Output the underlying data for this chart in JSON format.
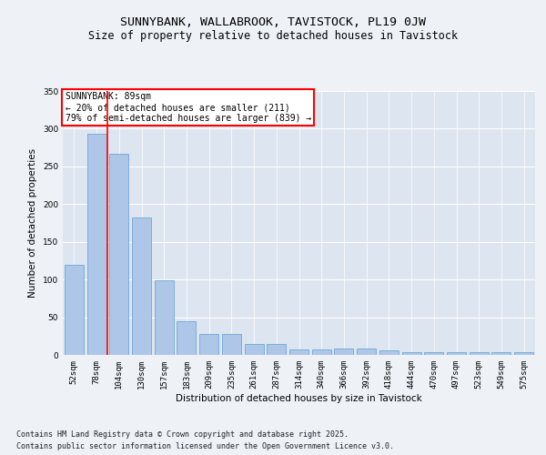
{
  "title1": "SUNNYBANK, WALLABROOK, TAVISTOCK, PL19 0JW",
  "title2": "Size of property relative to detached houses in Tavistock",
  "xlabel": "Distribution of detached houses by size in Tavistock",
  "ylabel": "Number of detached properties",
  "categories": [
    "52sqm",
    "78sqm",
    "104sqm",
    "130sqm",
    "157sqm",
    "183sqm",
    "209sqm",
    "235sqm",
    "261sqm",
    "287sqm",
    "314sqm",
    "340sqm",
    "366sqm",
    "392sqm",
    "418sqm",
    "444sqm",
    "470sqm",
    "497sqm",
    "523sqm",
    "549sqm",
    "575sqm"
  ],
  "values": [
    120,
    293,
    267,
    182,
    99,
    45,
    28,
    28,
    15,
    15,
    7,
    7,
    8,
    8,
    6,
    4,
    4,
    4,
    4,
    4,
    4
  ],
  "bar_color": "#aec6e8",
  "bar_edgecolor": "#5a9fd4",
  "redline_x": 1.5,
  "annotation_title": "SUNNYBANK: 89sqm",
  "annotation_line1": "← 20% of detached houses are smaller (211)",
  "annotation_line2": "79% of semi-detached houses are larger (839) →",
  "ylim": [
    0,
    350
  ],
  "yticks": [
    0,
    50,
    100,
    150,
    200,
    250,
    300,
    350
  ],
  "footer1": "Contains HM Land Registry data © Crown copyright and database right 2025.",
  "footer2": "Contains public sector information licensed under the Open Government Licence v3.0.",
  "bg_color": "#eef2f7",
  "plot_bg_color": "#dde6f0",
  "grid_color": "#ffffff",
  "title_fontsize": 9.5,
  "subtitle_fontsize": 8.5,
  "axis_label_fontsize": 7.5,
  "tick_fontsize": 6.5,
  "footer_fontsize": 6.0,
  "annotation_fontsize": 7.0
}
